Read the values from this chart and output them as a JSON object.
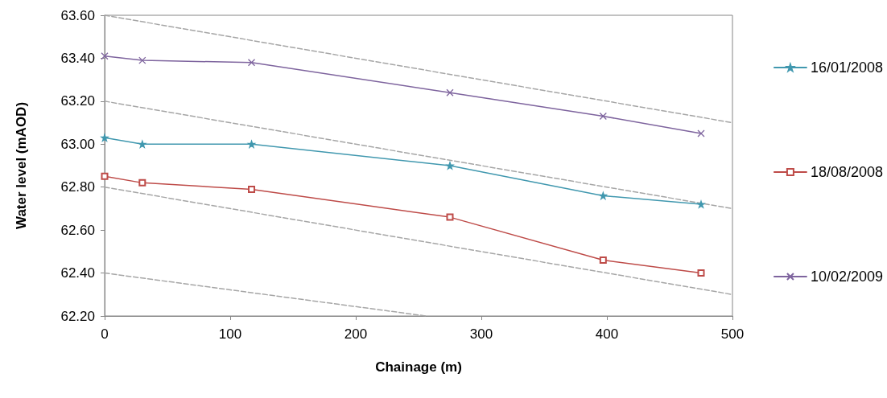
{
  "chart_data": {
    "type": "line",
    "xlabel": "Chainage (m)",
    "ylabel": "Water level (mAOD)",
    "x": [
      0,
      30,
      117,
      275,
      397,
      475
    ],
    "series": [
      {
        "name": "16/01/2008",
        "color": "#4198af",
        "marker": "star",
        "values": [
          63.03,
          63.0,
          63.0,
          62.9,
          62.76,
          62.72
        ]
      },
      {
        "name": "18/08/2008",
        "color": "#be4b48",
        "marker": "square",
        "values": [
          62.85,
          62.82,
          62.79,
          62.66,
          62.46,
          62.4
        ]
      },
      {
        "name": "10/02/2009",
        "color": "#7e649e",
        "marker": "cross",
        "values": [
          63.41,
          63.39,
          63.38,
          63.24,
          63.13,
          63.05
        ]
      },
      {
        "color": "#a6a6a6",
        "marker": "none",
        "line_style": "dashed",
        "x": [
          0,
          500
        ],
        "values": [
          63.6,
          63.1
        ]
      },
      {
        "color": "#a6a6a6",
        "marker": "none",
        "line_style": "dashed",
        "x": [
          0,
          500
        ],
        "values": [
          63.2,
          62.7
        ]
      },
      {
        "color": "#a6a6a6",
        "marker": "none",
        "line_style": "dashed",
        "x": [
          0,
          500
        ],
        "values": [
          62.8,
          62.3
        ]
      },
      {
        "color": "#a6a6a6",
        "marker": "none",
        "line_style": "dashed",
        "x": [
          0,
          256
        ],
        "values": [
          62.4,
          62.2
        ]
      }
    ],
    "xlim": [
      0,
      500
    ],
    "xticks": [
      0,
      100,
      200,
      300,
      400,
      500
    ],
    "ylim": [
      62.2,
      63.6
    ],
    "yticks": [
      {
        "value": 62.2,
        "label": "62.20"
      },
      {
        "value": 62.4,
        "label": "62.40"
      },
      {
        "value": 62.6,
        "label": "62.60"
      },
      {
        "value": 62.8,
        "label": "62.80"
      },
      {
        "value": 63.0,
        "label": "63.00"
      },
      {
        "value": 63.2,
        "label": "63.20"
      },
      {
        "value": 63.4,
        "label": "63.40"
      },
      {
        "value": 63.6,
        "label": "63.60"
      }
    ],
    "grid": false,
    "legend": "right"
  }
}
